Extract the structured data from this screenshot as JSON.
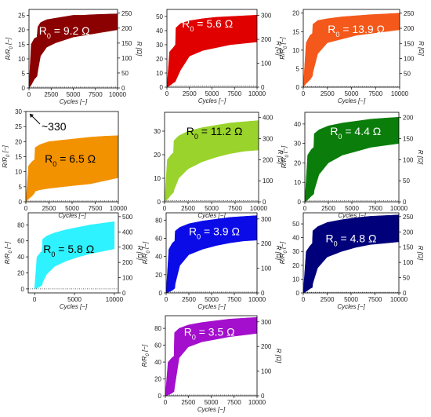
{
  "chart_data": [
    {
      "type": "area",
      "color": "#8b0000",
      "label": "R₀ = 9.2 Ω",
      "label_color": "#ffffff",
      "xlabel": "Cycles [−]",
      "ylabel": "R/R₀ [−]",
      "ylabel_right": "R [Ω]",
      "xlim": [
        0,
        10000
      ],
      "ylim": [
        0,
        27
      ],
      "xticks": [
        0,
        2500,
        5000,
        7500,
        10000
      ],
      "xtick_labels": [
        "0",
        "2500",
        "5000",
        "7500",
        "10000"
      ],
      "yticks": [
        0,
        5,
        10,
        15,
        20,
        25
      ],
      "yticks_right": [
        0,
        50,
        100,
        150,
        200,
        250
      ],
      "yticks_right_labels": [
        "0",
        "50",
        "100",
        "150",
        "200",
        "250"
      ],
      "dotted_y": 0.3,
      "annotation": "",
      "x": [
        0,
        250,
        600,
        900,
        1000,
        1300,
        2000,
        3000,
        4000,
        5000,
        6000,
        7000,
        8000,
        9000,
        10000
      ],
      "upper": [
        0,
        15,
        17,
        17.5,
        21,
        22.5,
        23.5,
        24,
        24.5,
        25,
        25,
        25.2,
        25.3,
        25.4,
        25.5
      ],
      "lower": [
        0,
        1,
        3,
        4,
        6,
        11,
        14,
        15.5,
        16.5,
        17.5,
        18,
        18.5,
        19,
        19.5,
        20
      ]
    },
    {
      "type": "area",
      "color": "#e00000",
      "label": "R₀ = 5.6 Ω",
      "label_color": "#ffffff",
      "xlabel": "Cycles [−]",
      "ylabel": "",
      "ylabel_right": "R [Ω]",
      "xlim": [
        0,
        10000
      ],
      "ylim": [
        0,
        55
      ],
      "xticks": [
        0,
        2500,
        5000,
        7500,
        10000
      ],
      "xtick_labels": [
        "0",
        "2500",
        "5000",
        "7500",
        "10000"
      ],
      "yticks": [
        0,
        10,
        20,
        30,
        40,
        50
      ],
      "yticks_right": [
        0,
        100,
        200,
        300
      ],
      "yticks_right_labels": [
        "0",
        "100",
        "200",
        "300"
      ],
      "dotted_y": 1,
      "annotation": "",
      "x": [
        0,
        300,
        700,
        950,
        1000,
        1500,
        2500,
        4000,
        5500,
        7000,
        8500,
        10000
      ],
      "upper": [
        0,
        25,
        28,
        30,
        42,
        45,
        47,
        48.5,
        49.5,
        50,
        50.5,
        51
      ],
      "lower": [
        0,
        1,
        3,
        4,
        5,
        12,
        22,
        26,
        28,
        30,
        31,
        32
      ]
    },
    {
      "type": "area",
      "color": "#f4581a",
      "label": "R₀ = 13.9 Ω",
      "label_color": "#ffffff",
      "xlabel": "Cycles [−]",
      "ylabel": "R/R₀ [−]",
      "ylabel_right": "R [Ω]",
      "xlim": [
        0,
        10000
      ],
      "ylim": [
        0,
        21
      ],
      "xticks": [
        0,
        2500,
        5000,
        7500,
        10000
      ],
      "xtick_labels": [
        "0",
        "2500",
        "5000",
        "7500",
        "10000"
      ],
      "yticks": [
        0,
        5,
        10,
        15,
        20
      ],
      "yticks_right": [
        50,
        100,
        150,
        200,
        250
      ],
      "yticks_right_labels": [
        "50",
        "100",
        "150",
        "200",
        "250"
      ],
      "dotted_y": 0.2,
      "annotation": "",
      "x": [
        0,
        300,
        700,
        950,
        1000,
        1500,
        2500,
        4000,
        5500,
        7000,
        8500,
        10000
      ],
      "upper": [
        0,
        12,
        14,
        14.5,
        17,
        18,
        18.5,
        19,
        19.3,
        19.6,
        19.8,
        20
      ],
      "lower": [
        0,
        1,
        2,
        3,
        4,
        9,
        12,
        13,
        14,
        14.5,
        15,
        15.5
      ]
    },
    {
      "type": "area",
      "color": "#f39200",
      "label": "R₀ = 6.5 Ω",
      "label_color": "#000000",
      "xlabel": "Cycles [−]",
      "ylabel": "R/R₀ [−]",
      "ylabel_right": "",
      "xlim": [
        0,
        10000
      ],
      "ylim": [
        0,
        30
      ],
      "xticks": [
        0,
        2500,
        5000,
        7500,
        10000
      ],
      "xtick_labels": [
        "0",
        "2500",
        "5000",
        "7500",
        "10000"
      ],
      "yticks": [
        0,
        5,
        10,
        15,
        20,
        25,
        30
      ],
      "yticks_right": [],
      "yticks_right_labels": [],
      "dotted_y": 0.3,
      "annotation": "~330",
      "x": [
        0,
        300,
        700,
        950,
        1000,
        1500,
        2500,
        4000,
        5500,
        7000,
        8500,
        10000
      ],
      "upper": [
        0,
        12,
        13.5,
        14,
        18,
        19,
        20,
        20.5,
        21,
        21.5,
        21.8,
        22
      ],
      "lower": [
        0,
        1,
        2,
        3,
        3.5,
        4,
        4.5,
        5,
        5.5,
        6,
        7,
        8
      ]
    },
    {
      "type": "area",
      "color": "#99d32c",
      "label": "R₀ = 11.2 Ω",
      "label_color": "#000000",
      "xlabel": "Cycles [−]",
      "ylabel": "",
      "ylabel_right": "R [Ω]",
      "xlim": [
        0,
        10000
      ],
      "ylim": [
        0,
        38
      ],
      "xticks": [
        0,
        2500,
        5000,
        7500,
        10000
      ],
      "xtick_labels": [
        "0",
        "2500",
        "5000",
        "7500",
        "10000"
      ],
      "yticks": [
        0,
        10,
        20,
        30
      ],
      "yticks_right": [
        0,
        100,
        200,
        300,
        400
      ],
      "yticks_right_labels": [
        "0",
        "100",
        "200",
        "300",
        "400"
      ],
      "dotted_y": 0.5,
      "annotation": "",
      "x": [
        0,
        300,
        700,
        950,
        1000,
        1500,
        2500,
        4000,
        5500,
        7000,
        8500,
        10000
      ],
      "upper": [
        0,
        18,
        20,
        21,
        26,
        28,
        30,
        31.5,
        32.5,
        33.5,
        34,
        34.5
      ],
      "lower": [
        0,
        1,
        3,
        4,
        5,
        10,
        14,
        17,
        19,
        20.5,
        21.5,
        22
      ]
    },
    {
      "type": "area",
      "color": "#0a7d0a",
      "label": "R₀ = 4.4 Ω",
      "label_color": "#ffffff",
      "xlabel": "Cycles [−]",
      "ylabel": "R/R₀ [−]",
      "ylabel_right": "R [Ω]",
      "xlim": [
        0,
        10000
      ],
      "ylim": [
        0,
        46
      ],
      "xticks": [
        0,
        2500,
        5000,
        7500,
        10000
      ],
      "xtick_labels": [
        "0",
        "2500",
        "5000",
        "7500",
        "10000"
      ],
      "yticks": [
        0,
        10,
        20,
        30,
        40
      ],
      "yticks_right": [
        0,
        50,
        100,
        150,
        200
      ],
      "yticks_right_labels": [
        "0",
        "50",
        "100",
        "150",
        "200"
      ],
      "dotted_y": 0.5,
      "annotation": "",
      "x": [
        0,
        300,
        700,
        950,
        1000,
        1500,
        2500,
        4000,
        5500,
        7000,
        8500,
        10000
      ],
      "upper": [
        0,
        24,
        27,
        28,
        35,
        37,
        39,
        40.5,
        41.5,
        42.5,
        43,
        43.5
      ],
      "lower": [
        0,
        1,
        3,
        4,
        6,
        14,
        20,
        24,
        26,
        28,
        29,
        30
      ]
    },
    {
      "type": "area",
      "color": "#2ef2ff",
      "label": "R₀ = 5.8 Ω",
      "label_color": "#000000",
      "xlabel": "Cycles [−]",
      "ylabel": "R/R₀ [−]",
      "ylabel_right": "R [Ω]",
      "xlim": [
        -800,
        10500
      ],
      "ylim": [
        -5,
        95
      ],
      "xticks": [
        0,
        5000,
        10000
      ],
      "xtick_labels": [
        "0",
        "5000",
        "10000"
      ],
      "yticks": [
        0,
        20,
        40,
        60,
        80
      ],
      "yticks_right": [
        0,
        100,
        200,
        300,
        400,
        500
      ],
      "yticks_right_labels": [
        "0",
        "100",
        "200",
        "300",
        "400",
        "500"
      ],
      "dotted_y": 0,
      "annotation": "",
      "x": [
        0,
        300,
        700,
        950,
        1000,
        1500,
        2500,
        4000,
        5500,
        7000,
        8500,
        10000
      ],
      "upper": [
        0,
        40,
        45,
        48,
        62,
        66,
        70,
        74,
        77,
        80,
        82,
        84
      ],
      "lower": [
        0,
        1,
        3,
        5,
        8,
        18,
        28,
        35,
        40,
        44,
        47,
        50
      ]
    },
    {
      "type": "area",
      "color": "#0b0be8",
      "label": "R₀ = 3.9 Ω",
      "label_color": "#ffffff",
      "xlabel": "Cycles [−]",
      "ylabel": "R/R₀ [−]",
      "ylabel_right": "R [Ω]",
      "xlim": [
        0,
        10000
      ],
      "ylim": [
        0,
        88
      ],
      "xticks": [
        0,
        2500,
        5000,
        7500,
        10000
      ],
      "xtick_labels": [
        "0",
        "2500",
        "5000",
        "7500",
        "10000"
      ],
      "yticks": [
        0,
        20,
        40,
        60,
        80
      ],
      "yticks_right": [
        0,
        100,
        200,
        300
      ],
      "yticks_right_labels": [
        "0",
        "100",
        "200",
        "300"
      ],
      "dotted_y": 1,
      "annotation": "",
      "x": [
        0,
        300,
        700,
        950,
        1000,
        1500,
        2500,
        4000,
        5500,
        7000,
        8500,
        10000
      ],
      "upper": [
        0,
        48,
        55,
        57,
        68,
        72,
        76,
        79,
        81,
        83,
        84,
        85
      ],
      "lower": [
        0,
        1,
        3,
        5,
        10,
        30,
        42,
        48,
        52,
        55,
        57,
        58
      ]
    },
    {
      "type": "area",
      "color": "#00007a",
      "label": "R₀ = 4.8 Ω",
      "label_color": "#ffffff",
      "xlabel": "Cycles [−]",
      "ylabel": "R/R₀ [−]",
      "ylabel_right": "R [Ω]",
      "xlim": [
        0,
        10000
      ],
      "ylim": [
        0,
        58
      ],
      "xticks": [
        0,
        2500,
        5000,
        7500,
        10000
      ],
      "xtick_labels": [
        "0",
        "2500",
        "5000",
        "7500",
        "10000"
      ],
      "yticks": [
        0,
        10,
        20,
        30,
        40,
        50
      ],
      "yticks_right": [
        0,
        50,
        100,
        150,
        200,
        250
      ],
      "yticks_right_labels": [
        "0",
        "50",
        "100",
        "150",
        "200",
        "250"
      ],
      "dotted_y": 0.5,
      "annotation": "",
      "x": [
        0,
        300,
        700,
        950,
        1000,
        1500,
        2500,
        4000,
        5500,
        7000,
        8500,
        10000
      ],
      "upper": [
        0,
        30,
        34,
        36,
        45,
        48,
        51,
        53,
        54.5,
        55.5,
        56,
        56.5
      ],
      "lower": [
        0,
        1,
        3,
        4,
        7,
        18,
        26,
        30,
        33,
        35,
        36,
        37
      ]
    },
    {
      "type": "area",
      "color": "#a30fcc",
      "label": "R₀ = 3.5 Ω",
      "label_color": "#ffffff",
      "xlabel": "Cycles [−]",
      "ylabel": "R/R₀ [−]",
      "ylabel_right": "R [Ω]",
      "xlim": [
        0,
        10000
      ],
      "ylim": [
        0,
        95
      ],
      "xticks": [
        0,
        2500,
        5000,
        7500,
        10000
      ],
      "xtick_labels": [
        "0",
        "2500",
        "5000",
        "7500",
        "10000"
      ],
      "yticks": [
        0,
        20,
        40,
        60,
        80
      ],
      "yticks_right": [
        0,
        100,
        200,
        300
      ],
      "yticks_right_labels": [
        "0",
        "100",
        "200",
        "300"
      ],
      "dotted_y": 1,
      "annotation": "",
      "x": [
        0,
        300,
        700,
        950,
        1000,
        1500,
        2500,
        4000,
        5500,
        7000,
        8500,
        10000
      ],
      "upper": [
        0,
        40,
        45,
        47,
        75,
        80,
        84,
        87,
        89,
        91,
        92,
        93
      ],
      "lower": [
        0,
        1,
        3,
        5,
        10,
        45,
        58,
        64,
        67,
        70,
        72,
        74
      ]
    }
  ]
}
